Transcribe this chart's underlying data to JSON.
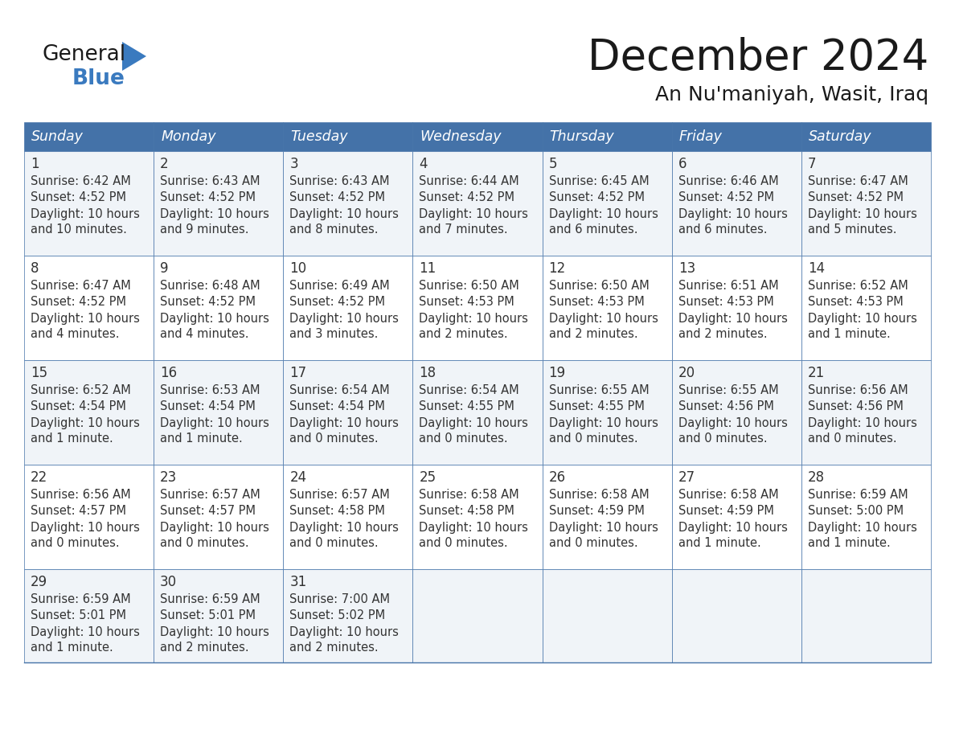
{
  "title": "December 2024",
  "subtitle": "An Nu'maniyah, Wasit, Iraq",
  "header_bg": "#4472a8",
  "header_text": "#ffffff",
  "cell_bg_even": "#f0f4f8",
  "cell_bg_odd": "#ffffff",
  "border_color": "#4472a8",
  "text_color": "#333333",
  "days_of_week": [
    "Sunday",
    "Monday",
    "Tuesday",
    "Wednesday",
    "Thursday",
    "Friday",
    "Saturday"
  ],
  "weeks": [
    [
      {
        "day": "1",
        "sunrise": "6:42 AM",
        "sunset": "4:52 PM",
        "daylight1": "Daylight: 10 hours",
        "daylight2": "and 10 minutes."
      },
      {
        "day": "2",
        "sunrise": "6:43 AM",
        "sunset": "4:52 PM",
        "daylight1": "Daylight: 10 hours",
        "daylight2": "and 9 minutes."
      },
      {
        "day": "3",
        "sunrise": "6:43 AM",
        "sunset": "4:52 PM",
        "daylight1": "Daylight: 10 hours",
        "daylight2": "and 8 minutes."
      },
      {
        "day": "4",
        "sunrise": "6:44 AM",
        "sunset": "4:52 PM",
        "daylight1": "Daylight: 10 hours",
        "daylight2": "and 7 minutes."
      },
      {
        "day": "5",
        "sunrise": "6:45 AM",
        "sunset": "4:52 PM",
        "daylight1": "Daylight: 10 hours",
        "daylight2": "and 6 minutes."
      },
      {
        "day": "6",
        "sunrise": "6:46 AM",
        "sunset": "4:52 PM",
        "daylight1": "Daylight: 10 hours",
        "daylight2": "and 6 minutes."
      },
      {
        "day": "7",
        "sunrise": "6:47 AM",
        "sunset": "4:52 PM",
        "daylight1": "Daylight: 10 hours",
        "daylight2": "and 5 minutes."
      }
    ],
    [
      {
        "day": "8",
        "sunrise": "6:47 AM",
        "sunset": "4:52 PM",
        "daylight1": "Daylight: 10 hours",
        "daylight2": "and 4 minutes."
      },
      {
        "day": "9",
        "sunrise": "6:48 AM",
        "sunset": "4:52 PM",
        "daylight1": "Daylight: 10 hours",
        "daylight2": "and 4 minutes."
      },
      {
        "day": "10",
        "sunrise": "6:49 AM",
        "sunset": "4:52 PM",
        "daylight1": "Daylight: 10 hours",
        "daylight2": "and 3 minutes."
      },
      {
        "day": "11",
        "sunrise": "6:50 AM",
        "sunset": "4:53 PM",
        "daylight1": "Daylight: 10 hours",
        "daylight2": "and 2 minutes."
      },
      {
        "day": "12",
        "sunrise": "6:50 AM",
        "sunset": "4:53 PM",
        "daylight1": "Daylight: 10 hours",
        "daylight2": "and 2 minutes."
      },
      {
        "day": "13",
        "sunrise": "6:51 AM",
        "sunset": "4:53 PM",
        "daylight1": "Daylight: 10 hours",
        "daylight2": "and 2 minutes."
      },
      {
        "day": "14",
        "sunrise": "6:52 AM",
        "sunset": "4:53 PM",
        "daylight1": "Daylight: 10 hours",
        "daylight2": "and 1 minute."
      }
    ],
    [
      {
        "day": "15",
        "sunrise": "6:52 AM",
        "sunset": "4:54 PM",
        "daylight1": "Daylight: 10 hours",
        "daylight2": "and 1 minute."
      },
      {
        "day": "16",
        "sunrise": "6:53 AM",
        "sunset": "4:54 PM",
        "daylight1": "Daylight: 10 hours",
        "daylight2": "and 1 minute."
      },
      {
        "day": "17",
        "sunrise": "6:54 AM",
        "sunset": "4:54 PM",
        "daylight1": "Daylight: 10 hours",
        "daylight2": "and 0 minutes."
      },
      {
        "day": "18",
        "sunrise": "6:54 AM",
        "sunset": "4:55 PM",
        "daylight1": "Daylight: 10 hours",
        "daylight2": "and 0 minutes."
      },
      {
        "day": "19",
        "sunrise": "6:55 AM",
        "sunset": "4:55 PM",
        "daylight1": "Daylight: 10 hours",
        "daylight2": "and 0 minutes."
      },
      {
        "day": "20",
        "sunrise": "6:55 AM",
        "sunset": "4:56 PM",
        "daylight1": "Daylight: 10 hours",
        "daylight2": "and 0 minutes."
      },
      {
        "day": "21",
        "sunrise": "6:56 AM",
        "sunset": "4:56 PM",
        "daylight1": "Daylight: 10 hours",
        "daylight2": "and 0 minutes."
      }
    ],
    [
      {
        "day": "22",
        "sunrise": "6:56 AM",
        "sunset": "4:57 PM",
        "daylight1": "Daylight: 10 hours",
        "daylight2": "and 0 minutes."
      },
      {
        "day": "23",
        "sunrise": "6:57 AM",
        "sunset": "4:57 PM",
        "daylight1": "Daylight: 10 hours",
        "daylight2": "and 0 minutes."
      },
      {
        "day": "24",
        "sunrise": "6:57 AM",
        "sunset": "4:58 PM",
        "daylight1": "Daylight: 10 hours",
        "daylight2": "and 0 minutes."
      },
      {
        "day": "25",
        "sunrise": "6:58 AM",
        "sunset": "4:58 PM",
        "daylight1": "Daylight: 10 hours",
        "daylight2": "and 0 minutes."
      },
      {
        "day": "26",
        "sunrise": "6:58 AM",
        "sunset": "4:59 PM",
        "daylight1": "Daylight: 10 hours",
        "daylight2": "and 0 minutes."
      },
      {
        "day": "27",
        "sunrise": "6:58 AM",
        "sunset": "4:59 PM",
        "daylight1": "Daylight: 10 hours",
        "daylight2": "and 1 minute."
      },
      {
        "day": "28",
        "sunrise": "6:59 AM",
        "sunset": "5:00 PM",
        "daylight1": "Daylight: 10 hours",
        "daylight2": "and 1 minute."
      }
    ],
    [
      {
        "day": "29",
        "sunrise": "6:59 AM",
        "sunset": "5:01 PM",
        "daylight1": "Daylight: 10 hours",
        "daylight2": "and 1 minute."
      },
      {
        "day": "30",
        "sunrise": "6:59 AM",
        "sunset": "5:01 PM",
        "daylight1": "Daylight: 10 hours",
        "daylight2": "and 2 minutes."
      },
      {
        "day": "31",
        "sunrise": "7:00 AM",
        "sunset": "5:02 PM",
        "daylight1": "Daylight: 10 hours",
        "daylight2": "and 2 minutes."
      },
      null,
      null,
      null,
      null
    ]
  ],
  "logo_color_general": "#1a1a1a",
  "logo_color_blue": "#3a7abf",
  "title_color": "#1a1a1a",
  "subtitle_color": "#1a1a1a"
}
